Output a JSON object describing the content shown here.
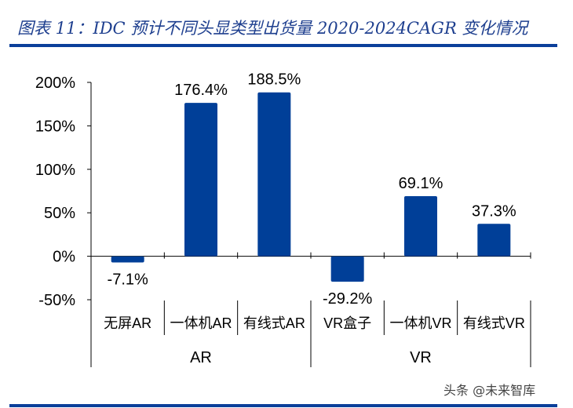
{
  "title": "图表 11：IDC 预计不同头显类型出货量 2020-2024CAGR 变化情况",
  "watermark": "头条 @未来智库",
  "chart_data": {
    "type": "bar",
    "title": "IDC 预计不同头显类型出货量 2020-2024CAGR 变化情况",
    "categories": [
      "无屏AR",
      "一体机AR",
      "有线式AR",
      "VR盒子",
      "一体机VR",
      "有线式VR"
    ],
    "groups": [
      {
        "name": "AR",
        "count": 3
      },
      {
        "name": "VR",
        "count": 3
      }
    ],
    "values": [
      -7.1,
      176.4,
      188.5,
      -29.2,
      69.1,
      37.3
    ],
    "data_labels": [
      "-7.1%",
      "176.4%",
      "188.5%",
      "-29.2%",
      "69.1%",
      "37.3%"
    ],
    "yticks": [
      200,
      150,
      100,
      50,
      0,
      -50
    ],
    "ytick_labels": [
      "200%",
      "150%",
      "100%",
      "50%",
      "0%",
      "-50%"
    ],
    "ylim": [
      -50,
      200
    ],
    "xlabel": "",
    "ylabel": "",
    "bar_color": "#003f98",
    "grid": false
  }
}
